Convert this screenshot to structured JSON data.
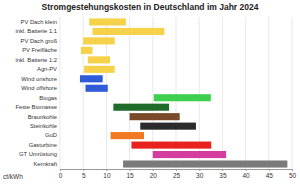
{
  "chart_data": {
    "type": "bar",
    "orientation": "horizontal",
    "title": "Stromgestehungskosten in Deutschland im Jahr 2024",
    "x_label": "ct/kWh",
    "categories": [
      "PV Dach klein",
      "inkl. Batterie 1:1",
      "PV Dach groß",
      "PV Freifläche",
      "inkl. Batterie 1:2",
      "Agri-PV",
      "Wind onshore",
      "Wind offshore",
      "Biogas",
      "Feste Biomasse",
      "Braunkohle",
      "Steinkohle",
      "GuD",
      "Gasturbine",
      "GT Umrüstung",
      "Kernkraft"
    ],
    "values": [
      [
        6.3,
        14.2
      ],
      [
        7.0,
        22.5
      ],
      [
        5.0,
        11.8
      ],
      [
        4.5,
        7.0
      ],
      [
        6.0,
        10.8
      ],
      [
        5.2,
        11.8
      ],
      [
        4.3,
        9.2
      ],
      [
        5.5,
        10.3
      ],
      [
        20.2,
        32.5
      ],
      [
        11.5,
        23.5
      ],
      [
        15.0,
        25.8
      ],
      [
        17.3,
        29.3
      ],
      [
        10.9,
        18.1
      ],
      [
        15.4,
        32.6
      ],
      [
        20.0,
        35.8
      ],
      [
        13.6,
        49.0
      ]
    ],
    "colors": [
      "#f6d24a",
      "#f6d24a",
      "#f6d24a",
      "#f6d24a",
      "#f6d24a",
      "#f6d24a",
      "#2f5bd8",
      "#2f5bd8",
      "#3fcf4f",
      "#1e6b2a",
      "#7a4a2a",
      "#2b2b2b",
      "#f07a22",
      "#e8231f",
      "#d63ca0",
      "#7a7a7a"
    ],
    "xlim": [
      0,
      50
    ],
    "xticks": [
      0,
      5,
      10,
      15,
      20,
      25,
      30,
      35,
      40,
      45,
      50
    ],
    "grid": true
  }
}
